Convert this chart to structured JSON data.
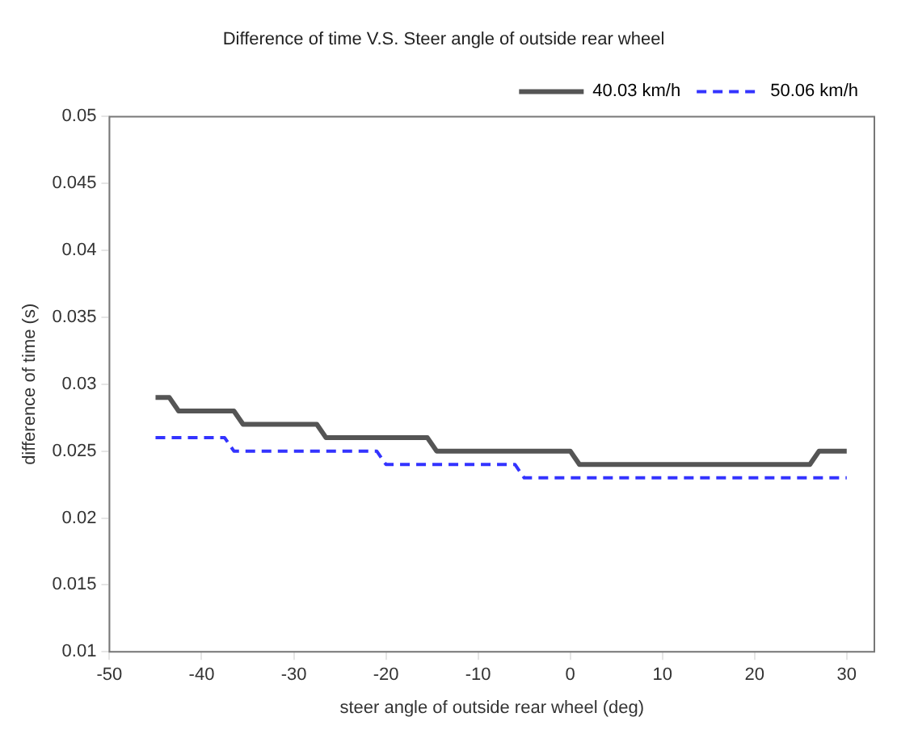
{
  "chart_data": {
    "type": "line",
    "title": "Difference of time V.S. Steer angle of outside rear wheel",
    "xlabel": "steer angle of outside rear wheel (deg)",
    "ylabel": "difference of time (s)",
    "xlim": [
      -50,
      33
    ],
    "xticks": [
      -50,
      -40,
      -30,
      -20,
      -10,
      0,
      10,
      20,
      30
    ],
    "ylim": [
      0.01,
      0.05
    ],
    "yticks": [
      0.01,
      0.015,
      0.02,
      0.025,
      0.03,
      0.035,
      0.04,
      0.045,
      0.05
    ],
    "grid": false,
    "legend": "top right",
    "marker": "none",
    "series": [
      {
        "name": "40.03 km/h",
        "color": "#555555",
        "line_style": "solid",
        "x": [
          -45,
          -43.5,
          -42.5,
          -36.5,
          -35.5,
          -27.5,
          -26.5,
          -15.5,
          -14.5,
          0,
          1,
          26,
          27,
          30
        ],
        "values": [
          0.029,
          0.029,
          0.028,
          0.028,
          0.027,
          0.027,
          0.026,
          0.026,
          0.025,
          0.025,
          0.024,
          0.024,
          0.025,
          0.025
        ]
      },
      {
        "name": "50.06 km/h",
        "color": "#3333ff",
        "line_style": "dashed",
        "x": [
          -45,
          -37.5,
          -36.5,
          -21,
          -20,
          -6,
          -5,
          30
        ],
        "values": [
          0.026,
          0.026,
          0.025,
          0.025,
          0.024,
          0.024,
          0.023,
          0.023
        ]
      }
    ]
  }
}
